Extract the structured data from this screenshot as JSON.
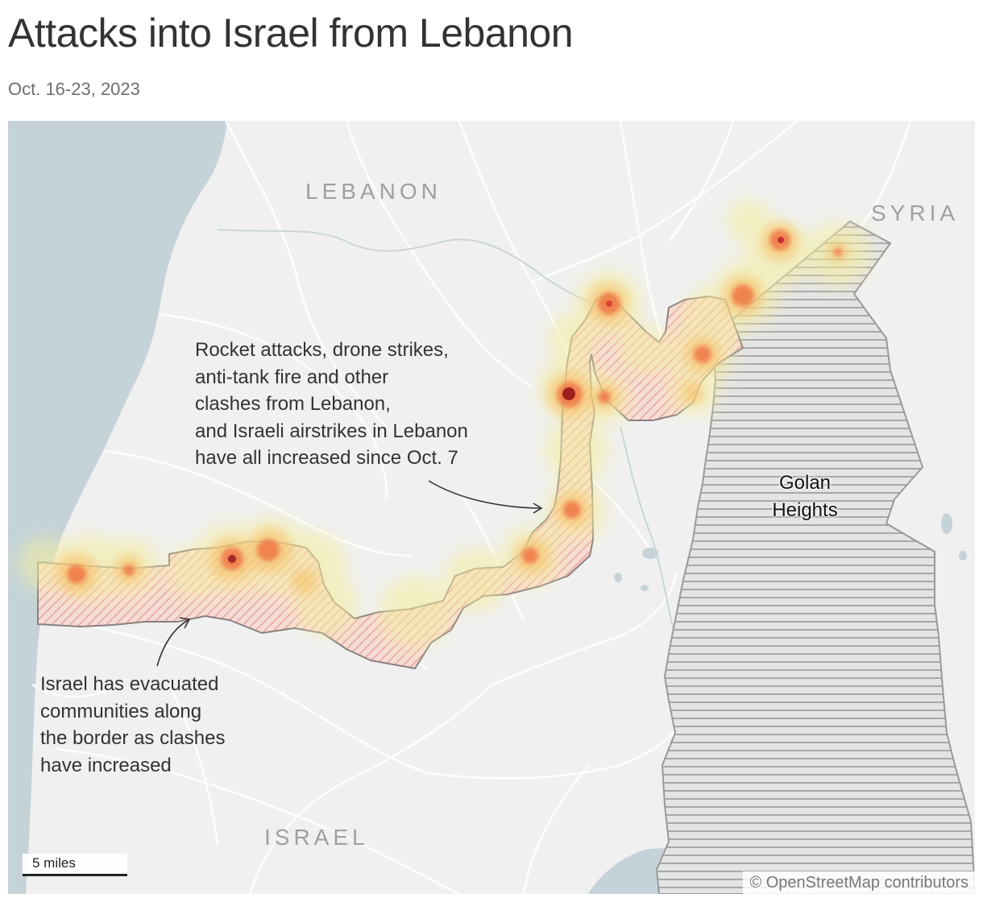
{
  "title": "Attacks into Israel from Lebanon",
  "subtitle": "Oct. 16-23, 2023",
  "map": {
    "labels": {
      "lebanon": "LEBANON",
      "syria": "SYRIA",
      "israel": "ISRAEL",
      "golan_line1": "Golan",
      "golan_line2": "Heights"
    },
    "annotations": {
      "rockets": "Rocket attacks, drone strikes,\nanti-tank fire and other\nclashes from Lebanon,\nand Israeli airstrikes in Lebanon\nhave all increased since Oct. 7",
      "evacuated": "Israel has evacuated\ncommunities along\nthe border as clashes\nhave increased"
    },
    "scale_label": "5 miles",
    "attribution": "© OpenStreetMap contributors",
    "colors": {
      "sea": "#c5d3d8",
      "land": "#f0f0f0",
      "evacuation_hatch": "#e8a49a",
      "golan_hatch": "#9a9a9a",
      "heat_low": "#f4ee9c",
      "heat_mid": "#f5a25a",
      "heat_high": "#e8432e",
      "heat_peak": "#9e1d1d"
    }
  }
}
